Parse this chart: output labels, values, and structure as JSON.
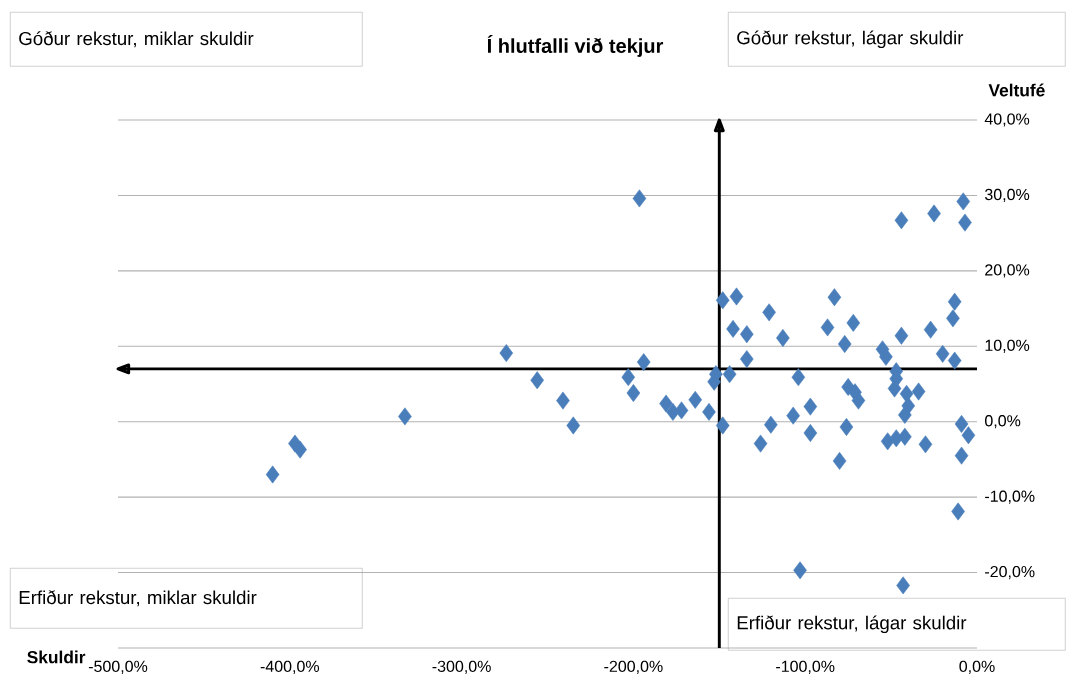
{
  "chart_data": {
    "type": "scatter",
    "title": "Í hlutfalli við tekjur",
    "xlabel": "Skuldir",
    "ylabel": "Veltufé",
    "annotations": [
      "Góður rekstur, miklar skuldir",
      "Góður rekstur, lágar skuldir",
      "Erfiður rekstur, miklar skuldir",
      "Erfiður rekstur, lágar skuldir"
    ],
    "x": [
      -196.5,
      -44,
      -25,
      -8,
      -7,
      -148,
      -140,
      -121,
      -83,
      -13,
      -14,
      -142,
      -134,
      -87,
      -72,
      -44,
      -27,
      -113,
      -77,
      -55,
      -53,
      -20,
      -13,
      -134,
      -194,
      -410,
      -397,
      -394,
      -333,
      -274,
      -256,
      -241,
      -235,
      -203,
      -200,
      -181,
      -177,
      -172,
      -164,
      -156,
      -148,
      -152,
      -153,
      -144,
      -104,
      -126,
      -120,
      -107,
      -97,
      -97,
      -80,
      -76,
      -75,
      -69,
      -71,
      -47,
      -47,
      -48,
      -41,
      -34,
      -40,
      -42,
      -52,
      -47,
      -42,
      -30,
      -9,
      -5,
      -9,
      -11,
      -103,
      -43
    ],
    "series": [
      {
        "color": "#4a7ebb",
        "values": [
          29.6,
          26.7,
          27.6,
          29.2,
          26.4,
          16.1,
          16.6,
          14.5,
          16.5,
          15.9,
          13.7,
          12.3,
          11.6,
          12.5,
          13.1,
          11.4,
          12.2,
          11.1,
          10.3,
          9.6,
          8.6,
          9.0,
          8.1,
          8.3,
          7.9,
          -7.0,
          -2.9,
          -3.7,
          0.7,
          9.1,
          5.5,
          2.8,
          -0.5,
          5.9,
          3.8,
          2.4,
          1.3,
          1.5,
          2.9,
          1.3,
          -0.5,
          6.3,
          5.3,
          6.3,
          5.9,
          -2.9,
          -0.4,
          0.8,
          2.0,
          -1.5,
          -5.2,
          -0.7,
          4.6,
          2.8,
          3.9,
          6.7,
          5.7,
          4.4,
          3.7,
          4.0,
          2.1,
          0.9,
          -2.6,
          -2.2,
          -2.0,
          -3.0,
          -0.3,
          -1.8,
          -4.5,
          -11.9,
          -19.7,
          -21.7
        ]
      }
    ],
    "marker": "diamond",
    "grid": "y",
    "xlim": [
      -500,
      0
    ],
    "ylim": [
      -30,
      40
    ],
    "xticks": [
      {
        "value": -500,
        "label": "-500,0%"
      },
      {
        "value": -400,
        "label": "-400,0%"
      },
      {
        "value": -300,
        "label": "-300,0%"
      },
      {
        "value": -200,
        "label": "-200,0%"
      },
      {
        "value": -100,
        "label": "-100,0%"
      },
      {
        "value": 0,
        "label": "0,0%"
      }
    ],
    "yticks": [
      {
        "value": -30,
        "label": null
      },
      {
        "value": -20,
        "label": "-20,0%"
      },
      {
        "value": -10,
        "label": "-10,0%"
      },
      {
        "value": 0,
        "label": "0,0%"
      },
      {
        "value": 10,
        "label": "10,0%"
      },
      {
        "value": 20,
        "label": "20,0%"
      },
      {
        "value": 30,
        "label": "30,0%"
      },
      {
        "value": 40,
        "label": "40,0%"
      }
    ],
    "ref_lines": [
      {
        "axis": "y",
        "value": 7,
        "color": "#000000"
      },
      {
        "axis": "x",
        "value": -150,
        "color": "#000000"
      }
    ]
  }
}
